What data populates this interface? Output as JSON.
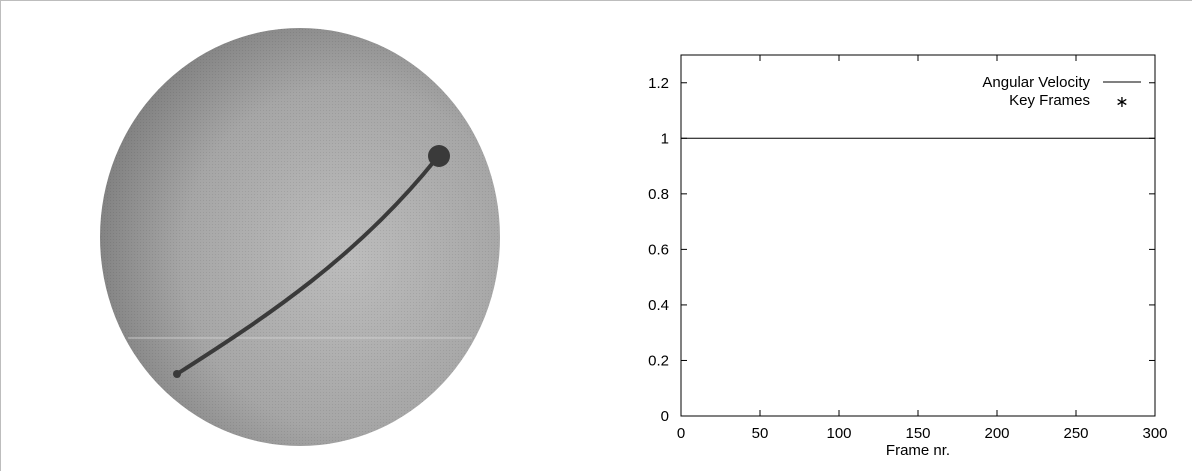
{
  "sphere_view": {
    "description_icon": "sphere-trajectory"
  },
  "chart_data": {
    "type": "line",
    "title": "",
    "xlabel": "Frame nr.",
    "ylabel": "",
    "xlim": [
      0,
      300
    ],
    "ylim": [
      0,
      1.3
    ],
    "xticks": [
      0,
      50,
      100,
      150,
      200,
      250,
      300
    ],
    "yticks": [
      0,
      0.2,
      0.4,
      0.6,
      0.8,
      1,
      1.2
    ],
    "xtick_labels": [
      "0",
      "50",
      "100",
      "150",
      "200",
      "250",
      "300"
    ],
    "ytick_labels": [
      "0",
      "0.2",
      "0.4",
      "0.6",
      "0.8",
      "1",
      "1.2"
    ],
    "legend_position": "top-right",
    "series": [
      {
        "name": "Angular Velocity",
        "style": "line",
        "x": [
          0,
          300
        ],
        "y": [
          1,
          1
        ],
        "color": "#000000"
      },
      {
        "name": "Key Frames",
        "style": "asterisk",
        "x": [],
        "y": [],
        "color": "#000000"
      }
    ]
  }
}
